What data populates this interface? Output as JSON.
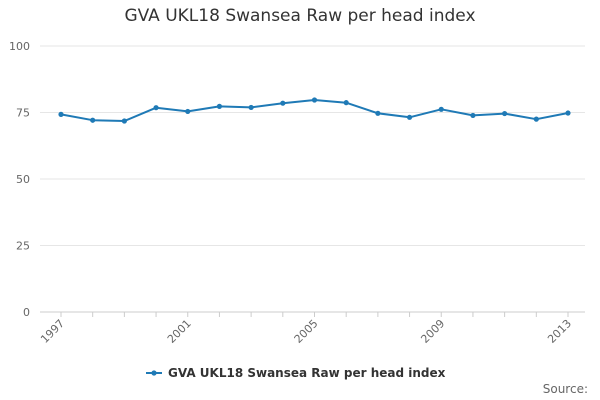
{
  "chart_data": {
    "type": "line",
    "title": "GVA UKL18 Swansea Raw per head index",
    "xlabel": "",
    "ylabel": "",
    "x": [
      1997,
      1998,
      1999,
      2000,
      2001,
      2002,
      2003,
      2004,
      2005,
      2006,
      2007,
      2008,
      2009,
      2010,
      2011,
      2012,
      2013
    ],
    "x_tick_labels": [
      "1997",
      "2001",
      "2005",
      "2009",
      "2013"
    ],
    "y_ticks": [
      0,
      25,
      50,
      75,
      100
    ],
    "y_tick_labels": [
      "0",
      "25",
      "50",
      "75",
      "100"
    ],
    "ylim": [
      0,
      100
    ],
    "grid": true,
    "legend_position": "bottom",
    "series": [
      {
        "name": "GVA UKL18 Swansea Raw per head index",
        "color": "#1f7ab6",
        "values": [
          74.3,
          72.1,
          71.8,
          76.8,
          75.4,
          77.3,
          76.9,
          78.5,
          79.7,
          78.7,
          74.7,
          73.2,
          76.2,
          73.9,
          74.6,
          72.5,
          74.8
        ]
      }
    ]
  },
  "source_label": "Source:"
}
